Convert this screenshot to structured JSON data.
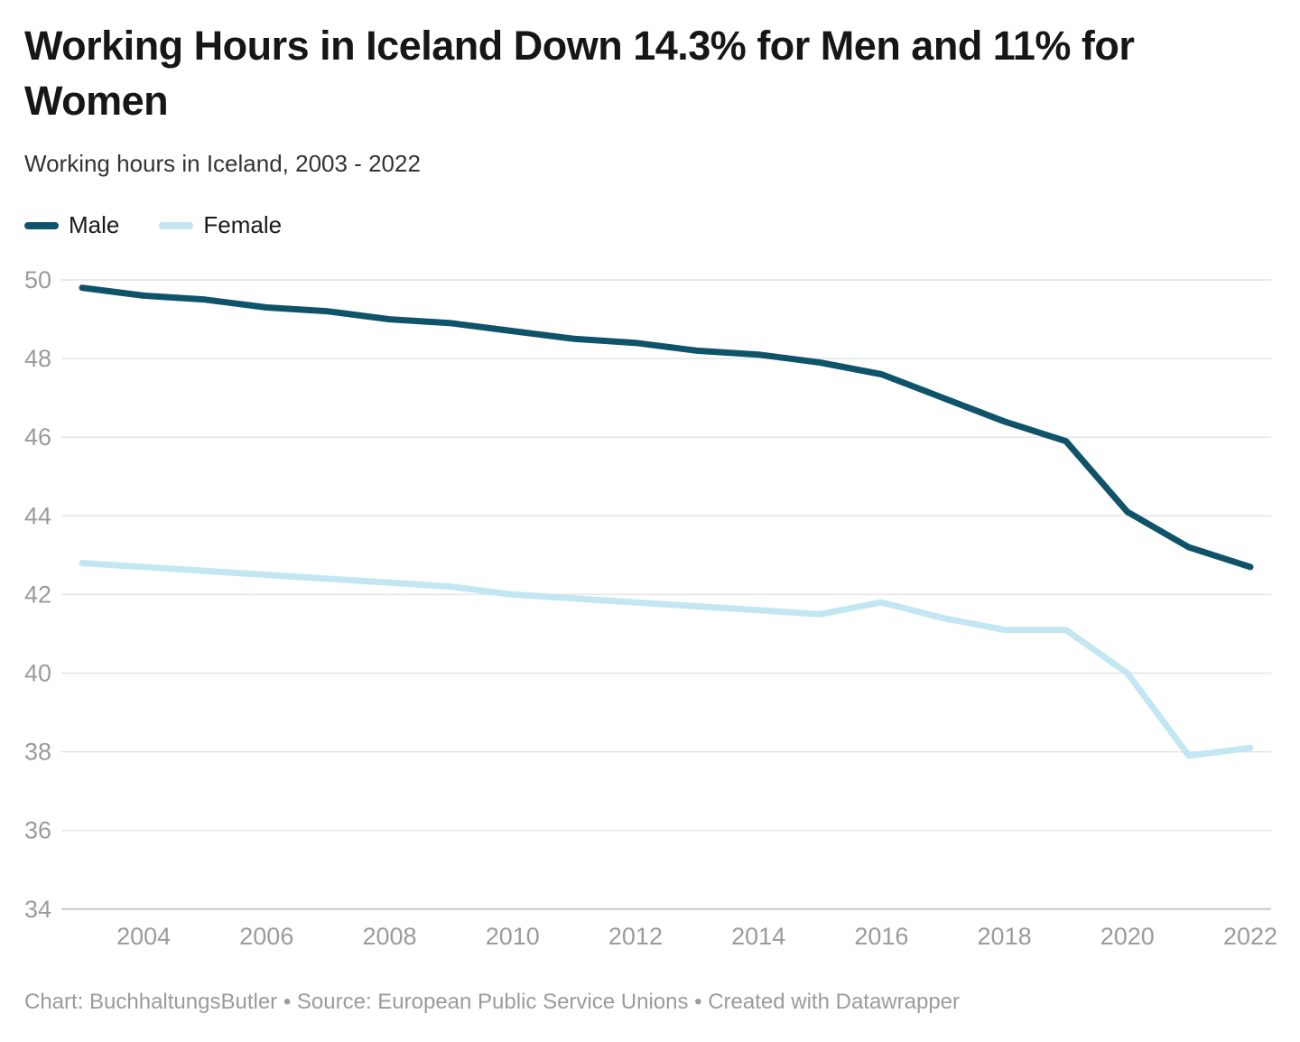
{
  "header": {
    "title": "Working Hours in Iceland Down 14.3% for Men and 11% for Women",
    "subtitle": "Working hours in Iceland, 2003 - 2022"
  },
  "legend": [
    {
      "label": "Male",
      "color": "#0f536b"
    },
    {
      "label": "Female",
      "color": "#c2e7f2"
    }
  ],
  "chart_data": {
    "type": "line",
    "title": "Working Hours in Iceland Down 14.3% for Men and 11% for Women",
    "subtitle": "Working hours in Iceland, 2003 - 2022",
    "x": [
      2003,
      2004,
      2005,
      2006,
      2007,
      2008,
      2009,
      2010,
      2011,
      2012,
      2013,
      2014,
      2015,
      2016,
      2017,
      2018,
      2019,
      2020,
      2021,
      2022
    ],
    "series": [
      {
        "name": "Male",
        "color": "#0f536b",
        "values": [
          49.8,
          49.6,
          49.5,
          49.3,
          49.2,
          49.0,
          48.9,
          48.7,
          48.5,
          48.4,
          48.2,
          48.1,
          47.9,
          47.6,
          47.0,
          46.4,
          45.9,
          44.1,
          43.2,
          42.7
        ]
      },
      {
        "name": "Female",
        "color": "#c2e7f2",
        "values": [
          42.8,
          42.7,
          42.6,
          42.5,
          42.4,
          42.3,
          42.2,
          42.0,
          41.9,
          41.8,
          41.7,
          41.6,
          41.5,
          41.8,
          41.4,
          41.1,
          41.1,
          40.0,
          37.9,
          38.1
        ]
      }
    ],
    "xlabel": "",
    "ylabel": "",
    "ylim": [
      34,
      50
    ],
    "yticks": [
      34,
      36,
      38,
      40,
      42,
      44,
      46,
      48,
      50
    ],
    "xticks": [
      2004,
      2006,
      2008,
      2010,
      2012,
      2014,
      2016,
      2018,
      2020,
      2022
    ],
    "grid": "horizontal",
    "legend_position": "top-left",
    "colors": {
      "gridline": "#e4e4e4",
      "baseline": "#c9c9c9",
      "tick_text": "#9b9b9b"
    }
  },
  "footer": {
    "text": "Chart: BuchhaltungsButler • Source: European Public Service Unions • Created with Datawrapper"
  }
}
